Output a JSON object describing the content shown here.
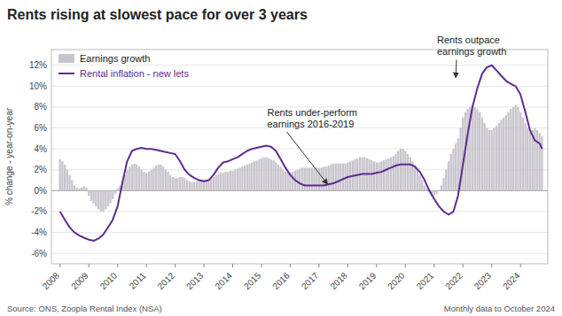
{
  "chart_data": {
    "type": "bar",
    "title": "Rents rising at slowest pace for over 3 years",
    "ylabel": "% change - year-on-year",
    "source_left": "Source: ONS, Zoopla Rental Index (NSA)",
    "source_right": "Monthly data to October 2024",
    "xlim": [
      2007.7,
      2024.95
    ],
    "xticks": [
      2008,
      2009,
      2010,
      2011,
      2012,
      2013,
      2014,
      2015,
      2016,
      2017,
      2018,
      2019,
      2020,
      2021,
      2022,
      2023,
      2024
    ],
    "ylim": [
      -7,
      13.5
    ],
    "yticks": [
      {
        "value": -6,
        "label": "-6%"
      },
      {
        "value": -4,
        "label": "-4%"
      },
      {
        "value": -2,
        "label": "-2%"
      },
      {
        "value": 0,
        "label": "0%"
      },
      {
        "value": 2,
        "label": "2%"
      },
      {
        "value": 4,
        "label": "4%"
      },
      {
        "value": 6,
        "label": "6%"
      },
      {
        "value": 8,
        "label": "8%"
      },
      {
        "value": 10,
        "label": "10%"
      },
      {
        "value": 12,
        "label": "12%"
      }
    ],
    "grid": true,
    "legend": "upper left",
    "annotations": [
      {
        "text": "Rents under-perform\nearnings 2016-2019",
        "x": 2017.3,
        "y": 0.6,
        "text_x": 2015.2,
        "text_y": 5.8
      },
      {
        "text": "Rents outpace\nearnings growth",
        "x": 2021.75,
        "y": 10.8,
        "text_x": 2021.1,
        "text_y": 12.7
      }
    ],
    "series": [
      {
        "name": "Earnings growth",
        "type": "bar",
        "color": "#c8c4cc",
        "x": [
          2008.0,
          2008.083,
          2008.167,
          2008.25,
          2008.333,
          2008.417,
          2008.5,
          2008.583,
          2008.667,
          2008.75,
          2008.833,
          2008.917,
          2009.0,
          2009.083,
          2009.167,
          2009.25,
          2009.333,
          2009.417,
          2009.5,
          2009.583,
          2009.667,
          2009.75,
          2009.833,
          2009.917,
          2010.0,
          2010.083,
          2010.167,
          2010.25,
          2010.333,
          2010.417,
          2010.5,
          2010.583,
          2010.667,
          2010.75,
          2010.833,
          2010.917,
          2011.0,
          2011.083,
          2011.167,
          2011.25,
          2011.333,
          2011.417,
          2011.5,
          2011.583,
          2011.667,
          2011.75,
          2011.833,
          2011.917,
          2012.0,
          2012.083,
          2012.167,
          2012.25,
          2012.333,
          2012.417,
          2012.5,
          2012.583,
          2012.667,
          2012.75,
          2012.833,
          2012.917,
          2013.0,
          2013.083,
          2013.167,
          2013.25,
          2013.333,
          2013.417,
          2013.5,
          2013.583,
          2013.667,
          2013.75,
          2013.833,
          2013.917,
          2014.0,
          2014.083,
          2014.167,
          2014.25,
          2014.333,
          2014.417,
          2014.5,
          2014.583,
          2014.667,
          2014.75,
          2014.833,
          2014.917,
          2015.0,
          2015.083,
          2015.167,
          2015.25,
          2015.333,
          2015.417,
          2015.5,
          2015.583,
          2015.667,
          2015.75,
          2015.833,
          2015.917,
          2016.0,
          2016.083,
          2016.167,
          2016.25,
          2016.333,
          2016.417,
          2016.5,
          2016.583,
          2016.667,
          2016.75,
          2016.833,
          2016.917,
          2017.0,
          2017.083,
          2017.167,
          2017.25,
          2017.333,
          2017.417,
          2017.5,
          2017.583,
          2017.667,
          2017.75,
          2017.833,
          2017.917,
          2018.0,
          2018.083,
          2018.167,
          2018.25,
          2018.333,
          2018.417,
          2018.5,
          2018.583,
          2018.667,
          2018.75,
          2018.833,
          2018.917,
          2019.0,
          2019.083,
          2019.167,
          2019.25,
          2019.333,
          2019.417,
          2019.5,
          2019.583,
          2019.667,
          2019.75,
          2019.833,
          2019.917,
          2020.0,
          2020.083,
          2020.167,
          2020.25,
          2020.333,
          2020.417,
          2020.5,
          2020.583,
          2020.667,
          2020.75,
          2020.833,
          2020.917,
          2021.0,
          2021.083,
          2021.167,
          2021.25,
          2021.333,
          2021.417,
          2021.5,
          2021.583,
          2021.667,
          2021.75,
          2021.833,
          2021.917,
          2022.0,
          2022.083,
          2022.167,
          2022.25,
          2022.333,
          2022.417,
          2022.5,
          2022.583,
          2022.667,
          2022.75,
          2022.833,
          2022.917,
          2023.0,
          2023.083,
          2023.167,
          2023.25,
          2023.333,
          2023.417,
          2023.5,
          2023.583,
          2023.667,
          2023.75,
          2023.833,
          2023.917,
          2024.0,
          2024.083,
          2024.167,
          2024.25,
          2024.333,
          2024.417,
          2024.5,
          2024.583,
          2024.667,
          2024.75
        ],
        "values": [
          3.0,
          2.8,
          2.5,
          2.0,
          1.5,
          1.0,
          0.5,
          0.3,
          0.2,
          0.3,
          0.4,
          0.3,
          -0.5,
          -1.0,
          -1.2,
          -1.5,
          -1.8,
          -2.0,
          -2.0,
          -1.8,
          -1.5,
          -1.2,
          -0.8,
          -0.3,
          0.2,
          0.5,
          1.0,
          1.5,
          2.0,
          2.3,
          2.5,
          2.6,
          2.5,
          2.3,
          2.0,
          1.8,
          1.7,
          1.8,
          2.0,
          2.2,
          2.4,
          2.5,
          2.5,
          2.3,
          2.0,
          1.8,
          1.5,
          1.3,
          1.2,
          1.2,
          1.3,
          1.3,
          1.2,
          1.0,
          0.9,
          0.8,
          0.8,
          0.9,
          1.0,
          1.0,
          1.0,
          1.0,
          1.1,
          1.2,
          1.3,
          1.5,
          1.6,
          1.7,
          1.7,
          1.8,
          1.8,
          1.9,
          1.9,
          2.0,
          2.1,
          2.2,
          2.3,
          2.4,
          2.5,
          2.6,
          2.7,
          2.8,
          2.9,
          3.0,
          3.1,
          3.2,
          3.2,
          3.1,
          3.0,
          2.9,
          2.7,
          2.5,
          2.3,
          2.0,
          1.8,
          1.7,
          1.7,
          1.8,
          1.9,
          2.0,
          2.1,
          2.2,
          2.2,
          2.2,
          2.2,
          2.2,
          2.2,
          2.2,
          2.2,
          2.2,
          2.3,
          2.3,
          2.4,
          2.5,
          2.6,
          2.6,
          2.6,
          2.6,
          2.6,
          2.6,
          2.7,
          2.8,
          2.9,
          3.0,
          3.1,
          3.2,
          3.2,
          3.2,
          3.1,
          3.0,
          2.9,
          2.8,
          2.7,
          2.7,
          2.8,
          2.9,
          3.0,
          3.1,
          3.2,
          3.3,
          3.5,
          3.8,
          4.0,
          4.0,
          3.8,
          3.5,
          3.2,
          2.8,
          2.4,
          2.0,
          1.5,
          1.0,
          0.5,
          0.2,
          -0.2,
          -0.5,
          -0.5,
          -0.3,
          0.0,
          0.5,
          1.2,
          2.0,
          2.8,
          3.5,
          4.0,
          4.5,
          5.0,
          6.0,
          7.0,
          7.5,
          7.8,
          8.0,
          8.2,
          8.0,
          7.8,
          7.5,
          7.0,
          6.5,
          6.0,
          5.8,
          5.8,
          6.0,
          6.2,
          6.5,
          6.8,
          7.0,
          7.2,
          7.5,
          7.8,
          8.0,
          8.2,
          8.0,
          7.5,
          7.0,
          6.5,
          6.0,
          5.8,
          5.8,
          6.0,
          5.8,
          5.5,
          5.2
        ]
      },
      {
        "name": "Rental inflation - new lets",
        "type": "line",
        "color": "#5c2d91",
        "x": [
          2008.0,
          2008.17,
          2008.33,
          2008.5,
          2008.67,
          2008.83,
          2009.0,
          2009.17,
          2009.33,
          2009.5,
          2009.67,
          2009.83,
          2010.0,
          2010.17,
          2010.33,
          2010.5,
          2010.67,
          2010.83,
          2011.0,
          2011.17,
          2011.33,
          2011.5,
          2011.67,
          2011.83,
          2012.0,
          2012.17,
          2012.33,
          2012.5,
          2012.67,
          2012.83,
          2013.0,
          2013.17,
          2013.33,
          2013.5,
          2013.67,
          2013.83,
          2014.0,
          2014.17,
          2014.33,
          2014.5,
          2014.67,
          2014.83,
          2015.0,
          2015.17,
          2015.33,
          2015.5,
          2015.67,
          2015.83,
          2016.0,
          2016.17,
          2016.33,
          2016.5,
          2016.67,
          2016.83,
          2017.0,
          2017.17,
          2017.33,
          2017.5,
          2017.67,
          2017.83,
          2018.0,
          2018.17,
          2018.33,
          2018.5,
          2018.67,
          2018.83,
          2019.0,
          2019.17,
          2019.33,
          2019.5,
          2019.67,
          2019.83,
          2020.0,
          2020.17,
          2020.33,
          2020.5,
          2020.67,
          2020.83,
          2021.0,
          2021.17,
          2021.33,
          2021.5,
          2021.67,
          2021.83,
          2022.0,
          2022.17,
          2022.33,
          2022.5,
          2022.67,
          2022.83,
          2023.0,
          2023.17,
          2023.33,
          2023.5,
          2023.67,
          2023.83,
          2024.0,
          2024.17,
          2024.33,
          2024.5,
          2024.67,
          2024.75
        ],
        "values": [
          -2.0,
          -2.8,
          -3.5,
          -4.0,
          -4.3,
          -4.5,
          -4.7,
          -4.8,
          -4.6,
          -4.2,
          -3.5,
          -2.8,
          -1.5,
          0.8,
          2.8,
          3.8,
          4.0,
          4.1,
          4.0,
          4.0,
          3.9,
          3.8,
          3.7,
          3.6,
          3.5,
          2.8,
          2.0,
          1.5,
          1.2,
          1.0,
          0.9,
          1.0,
          1.5,
          2.2,
          2.7,
          2.8,
          3.0,
          3.2,
          3.5,
          3.8,
          4.0,
          4.1,
          4.2,
          4.3,
          4.2,
          3.8,
          3.0,
          2.2,
          1.5,
          1.0,
          0.7,
          0.5,
          0.5,
          0.5,
          0.5,
          0.5,
          0.6,
          0.7,
          0.9,
          1.1,
          1.3,
          1.4,
          1.5,
          1.6,
          1.6,
          1.6,
          1.7,
          1.8,
          2.0,
          2.2,
          2.4,
          2.5,
          2.5,
          2.5,
          2.3,
          1.8,
          1.0,
          0.0,
          -0.8,
          -1.5,
          -2.0,
          -2.3,
          -2.0,
          -0.5,
          2.5,
          5.5,
          8.0,
          9.8,
          11.2,
          11.8,
          12.0,
          11.5,
          11.0,
          10.5,
          10.2,
          10.0,
          9.2,
          7.5,
          5.8,
          4.8,
          4.5,
          4.0
        ]
      }
    ]
  }
}
